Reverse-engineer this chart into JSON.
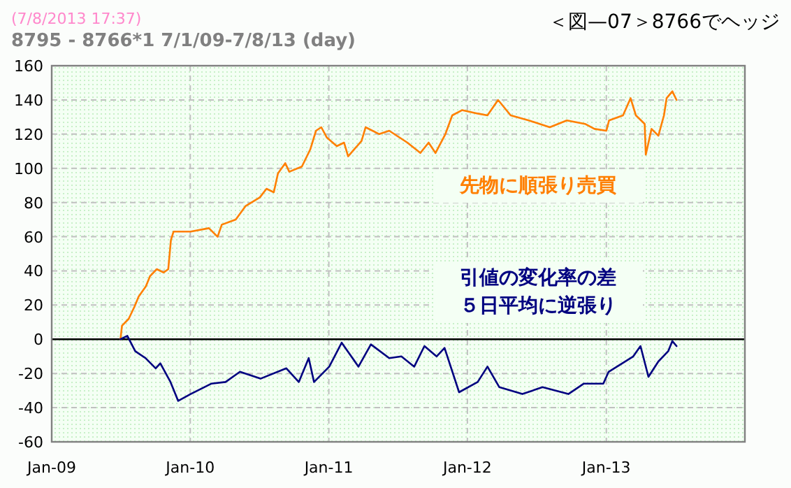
{
  "chart_data": {
    "type": "line",
    "title": "＜図—07＞8766でヘッジ",
    "subtitle": "8795 - 8766*1  7/1/09-7/8/13 (day)",
    "annotations": [
      "(7/8/2013 17:37)"
    ],
    "xlim": [
      "2009-01-01",
      "2014-01-01"
    ],
    "xticks": [
      {
        "value": "2009-01-01",
        "label": "Jan-09"
      },
      {
        "value": "2010-01-01",
        "label": "Jan-10"
      },
      {
        "value": "2011-01-01",
        "label": "Jan-11"
      },
      {
        "value": "2012-01-01",
        "label": "Jan-12"
      },
      {
        "value": "2013-01-01",
        "label": "Jan-13"
      }
    ],
    "ylim": [
      -60,
      160
    ],
    "yticks": [
      -60,
      -40,
      -20,
      0,
      20,
      40,
      60,
      80,
      100,
      120,
      140,
      160
    ],
    "grid": true,
    "ref_lines": [
      {
        "axis": "y",
        "value": 0,
        "color": "#000000"
      }
    ],
    "series": [
      {
        "name": "先物に順張り売買",
        "color": "#ff7f00",
        "x": [
          "2009-07-01",
          "2009-07-05",
          "2009-07-23",
          "2009-08-07",
          "2009-08-18",
          "2009-09-06",
          "2009-09-17",
          "2009-10-05",
          "2009-10-23",
          "2009-11-04",
          "2009-11-11",
          "2009-11-18",
          "2010-01-02",
          "2010-02-19",
          "2010-03-14",
          "2010-03-25",
          "2010-05-01",
          "2010-05-27",
          "2010-07-03",
          "2010-07-21",
          "2010-08-09",
          "2010-08-20",
          "2010-09-08",
          "2010-09-19",
          "2010-10-22",
          "2010-11-13",
          "2010-11-28",
          "2010-12-12",
          "2010-12-27",
          "2011-01-22",
          "2011-02-10",
          "2011-02-21",
          "2011-03-28",
          "2011-04-08",
          "2011-05-14",
          "2011-06-09",
          "2011-07-27",
          "2011-08-30",
          "2011-09-21",
          "2011-10-09",
          "2011-11-04",
          "2011-11-22",
          "2011-12-18",
          "2012-01-28",
          "2012-02-23",
          "2012-03-22",
          "2012-04-24",
          "2012-06-11",
          "2012-08-05",
          "2012-09-19",
          "2012-11-06",
          "2012-12-01",
          "2013-01-01",
          "2013-01-08",
          "2013-02-14",
          "2013-03-06",
          "2013-03-20",
          "2013-04-12",
          "2013-04-15",
          "2013-04-30",
          "2013-05-18",
          "2013-06-02",
          "2013-06-09",
          "2013-06-24",
          "2013-07-05"
        ],
        "values": [
          0,
          8,
          12,
          19,
          25,
          31,
          37,
          41,
          39,
          41,
          58,
          63,
          63,
          65,
          60,
          67,
          70,
          78,
          83,
          88,
          86,
          97,
          103,
          98,
          101,
          111,
          122,
          124,
          118,
          113,
          115,
          107,
          116,
          124,
          120,
          122,
          115,
          109,
          115,
          109,
          120,
          131,
          134,
          132,
          131,
          140,
          131,
          128,
          124,
          128,
          126,
          123,
          122,
          128,
          131,
          141,
          131,
          126,
          108,
          123,
          119,
          131,
          141,
          145,
          140
        ]
      },
      {
        "name": "引値の変化率の差５日平均に逆張り",
        "color": "#000080",
        "x": [
          "2009-07-01",
          "2009-07-19",
          "2009-08-09",
          "2009-09-05",
          "2009-10-02",
          "2009-10-14",
          "2009-11-10",
          "2009-11-30",
          "2010-01-02",
          "2010-02-25",
          "2010-04-04",
          "2010-05-12",
          "2010-07-05",
          "2010-09-11",
          "2010-10-14",
          "2010-11-09",
          "2010-11-23",
          "2011-01-02",
          "2011-02-04",
          "2011-03-20",
          "2011-04-22",
          "2011-06-09",
          "2011-07-11",
          "2011-08-14",
          "2011-09-10",
          "2011-10-12",
          "2011-11-02",
          "2011-12-10",
          "2012-01-28",
          "2012-02-23",
          "2012-03-25",
          "2012-05-25",
          "2012-07-17",
          "2012-09-23",
          "2012-11-02",
          "2012-12-24",
          "2013-01-07",
          "2013-03-13",
          "2013-04-01",
          "2013-04-22",
          "2013-05-18",
          "2013-06-13",
          "2013-06-24",
          "2013-07-05"
        ],
        "values": [
          0,
          2,
          -7,
          -11,
          -17,
          -14,
          -25,
          -36,
          -32,
          -26,
          -25,
          -19,
          -23,
          -17,
          -25,
          -11,
          -25,
          -16,
          -2,
          -16,
          -3,
          -11,
          -10,
          -16,
          -4,
          -10,
          -5,
          -31,
          -25,
          -16,
          -28,
          -32,
          -28,
          -32,
          -26,
          -26,
          -19,
          -10,
          -4,
          -22,
          -13,
          -7,
          -1,
          -4
        ]
      }
    ]
  }
}
